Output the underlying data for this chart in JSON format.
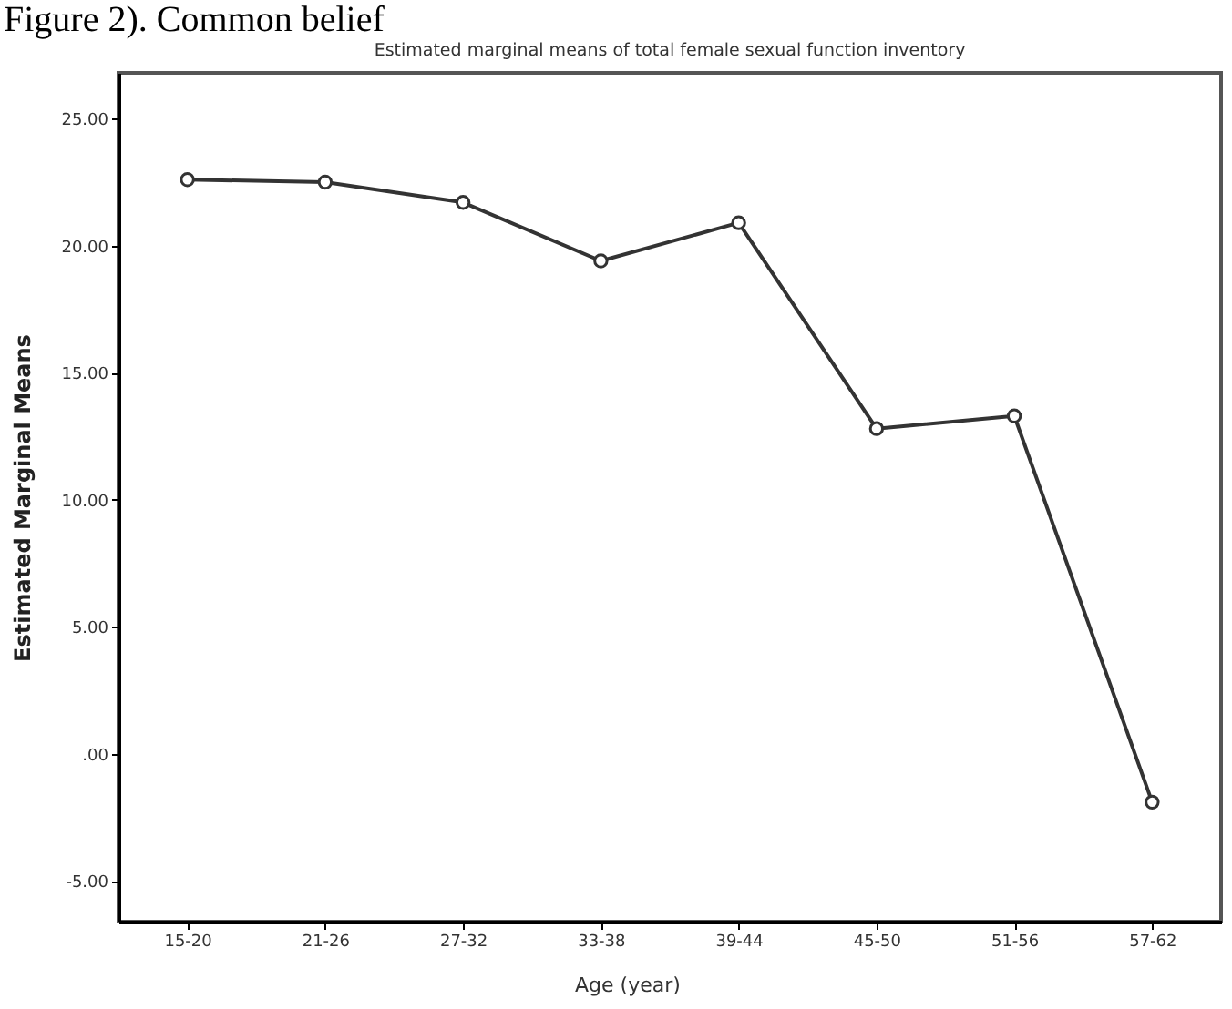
{
  "chart_data": {
    "type": "line",
    "title": "Estimated marginal means of total female sexual function inventory",
    "xlabel": "Age (year)",
    "ylabel": "Estimated Marginal Means",
    "annotations": [
      "Figure 2). Common belief"
    ],
    "categories": [
      "15-20",
      "21-26",
      "27-32",
      "33-38",
      "39-44",
      "45-50",
      "51-56",
      "57-62"
    ],
    "series": [
      {
        "color": "#333333",
        "values": [
          22.6,
          22.5,
          21.7,
          19.4,
          20.9,
          12.8,
          13.3,
          -1.9
        ]
      }
    ],
    "ylim": [
      -6.6,
      26.8
    ],
    "yticks": [
      {
        "value": -5,
        "label": "-5.00"
      },
      {
        "value": 0,
        "label": ".00"
      },
      {
        "value": 5,
        "label": "5.00"
      },
      {
        "value": 10,
        "label": "10.00"
      },
      {
        "value": 15,
        "label": "15.00"
      },
      {
        "value": 20,
        "label": "20.00"
      },
      {
        "value": 25,
        "label": "25.00"
      }
    ],
    "marker": "circle",
    "line_style": "solid",
    "grid": false,
    "legend": false
  }
}
